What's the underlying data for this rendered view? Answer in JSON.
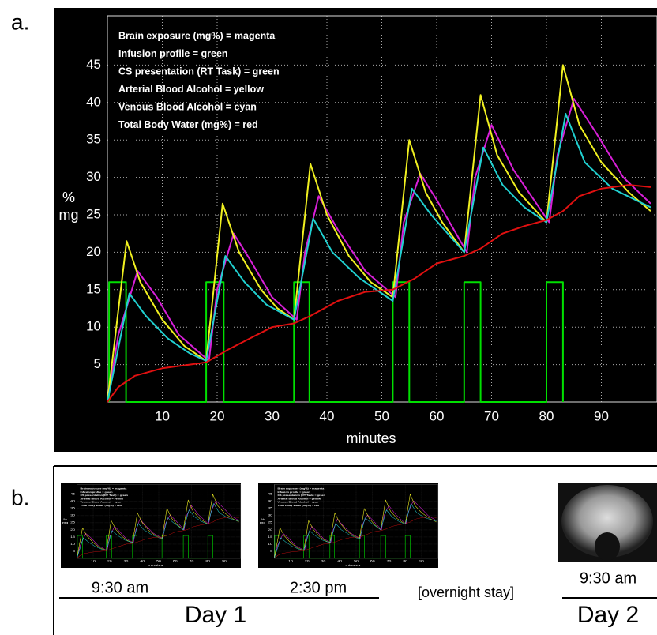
{
  "panel_labels": [
    "a.",
    "b."
  ],
  "chart_data": {
    "type": "line",
    "annotations": [
      "Brain exposure (mg%) = magenta",
      "Infusion profile = green",
      "CS presentation (RT Task) = green",
      "Arterial Blood Alcohol = yellow",
      "Venous Blood Alcohol = cyan",
      "Total Body Water (mg%) = red"
    ],
    "x_label": "minutes",
    "y_label": [
      "%",
      "mg"
    ],
    "xlim": [
      0,
      100
    ],
    "ylim": [
      0,
      50
    ],
    "xticks": [
      10,
      20,
      30,
      40,
      50,
      60,
      70,
      80,
      90
    ],
    "yticks": [
      5,
      10,
      15,
      20,
      25,
      30,
      35,
      40,
      45
    ],
    "grid": true,
    "series": [
      {
        "color": "#00e000",
        "x": [
          0.3,
          0.3,
          3.4,
          3.4,
          18,
          18,
          21.2,
          21.2,
          34,
          34,
          36.8,
          36.8,
          52,
          52,
          55,
          55,
          65,
          65,
          68,
          68,
          80,
          80,
          83,
          83
        ],
        "values": [
          0,
          16,
          16,
          0,
          0,
          16,
          16,
          0,
          0,
          16,
          16,
          0,
          0,
          16,
          16,
          0,
          0,
          16,
          16,
          0,
          0,
          16,
          16,
          0
        ]
      },
      {
        "color": "#d81fd8",
        "x": [
          0,
          2,
          5.5,
          9,
          13,
          18.5,
          20,
          23,
          26,
          30,
          34.5,
          36,
          38.5,
          42,
          47,
          52.5,
          54,
          57,
          60,
          65.5,
          67,
          70,
          74,
          80.5,
          82,
          85,
          89,
          94,
          99
        ],
        "values": [
          0,
          9,
          17.5,
          14,
          9,
          5.5,
          15,
          22.5,
          19,
          14,
          11,
          20,
          27.5,
          23,
          17.5,
          14,
          24,
          30.5,
          27,
          20,
          30,
          37,
          31,
          24,
          33,
          40.5,
          36,
          30,
          26.5
        ]
      },
      {
        "color": "#f0f020",
        "x": [
          0,
          3.5,
          6,
          10,
          14,
          18,
          21,
          24,
          28,
          31,
          34,
          37,
          40,
          44,
          48,
          52,
          55,
          58,
          61,
          65,
          68,
          71,
          75,
          80,
          83,
          86,
          90,
          95,
          99
        ],
        "values": [
          0,
          21.5,
          16,
          11,
          7.5,
          5.5,
          26.5,
          20,
          15,
          12.5,
          11,
          31.8,
          25,
          19.5,
          16,
          14,
          35,
          28,
          24,
          20,
          41,
          33,
          28,
          24,
          45,
          37,
          32,
          28,
          25.5
        ]
      },
      {
        "color": "#20d0d0",
        "x": [
          0,
          4,
          7,
          11,
          15,
          18,
          21.5,
          25,
          29,
          34,
          37.5,
          41,
          46,
          52,
          55.5,
          59,
          65,
          68.5,
          72,
          76,
          80,
          83.5,
          87,
          92,
          99
        ],
        "values": [
          0,
          14.5,
          11.5,
          8.5,
          6.5,
          5.5,
          19.5,
          16,
          13,
          11,
          24.5,
          20,
          16.5,
          13.5,
          28.5,
          25,
          20,
          34,
          29,
          26,
          24,
          38.5,
          32,
          28.5,
          26
        ]
      },
      {
        "color": "#e01010",
        "x": [
          0,
          2,
          5,
          10,
          15,
          18,
          22,
          26,
          30,
          34,
          37,
          42,
          47,
          52,
          56,
          60,
          65,
          68,
          72,
          76,
          80,
          83,
          86,
          90,
          95,
          99
        ],
        "values": [
          0,
          2,
          3.5,
          4.5,
          5,
          5.3,
          7,
          8.5,
          10,
          10.5,
          11.5,
          13.5,
          14.7,
          15,
          16.5,
          18.5,
          19.5,
          20.5,
          22.5,
          23.5,
          24.3,
          25.5,
          27.5,
          28.5,
          29,
          28.7
        ]
      }
    ]
  },
  "panel_b": {
    "times": [
      "9:30 am",
      "2:30 pm",
      "9:30 am"
    ],
    "overnight": "[overnight stay]",
    "days": [
      "Day 1",
      "Day 2"
    ]
  }
}
